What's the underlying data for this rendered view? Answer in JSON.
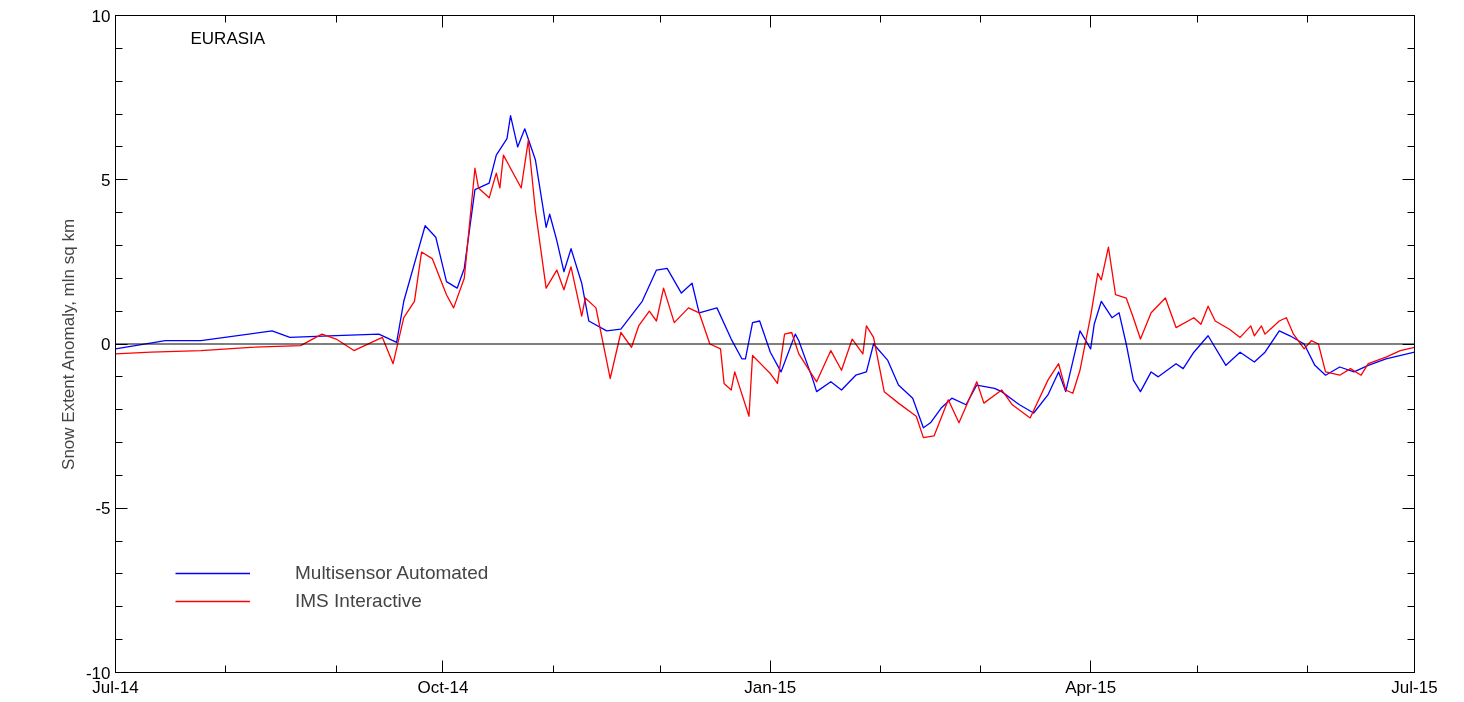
{
  "chart_data": {
    "type": "line",
    "title": "EURASIA",
    "ylabel": "Snow Extent Anomaly, mln sq km",
    "xlim": [
      "2014-07-01",
      "2015-07-01"
    ],
    "xticks": [
      {
        "value": "2014-07-01",
        "label": "Jul-14"
      },
      {
        "value": "2014-10-01",
        "label": "Oct-14"
      },
      {
        "value": "2015-01-01",
        "label": "Jan-15"
      },
      {
        "value": "2015-04-01",
        "label": "Apr-15"
      },
      {
        "value": "2015-07-01",
        "label": "Jul-15"
      }
    ],
    "ylim": [
      -10,
      10
    ],
    "yticks": [
      -10,
      -5,
      0,
      5,
      10
    ],
    "ref_lines": [
      {
        "axis": "y",
        "value": 0,
        "color": "#000000"
      }
    ],
    "legend": "bottom left",
    "grid": false,
    "line_style": "solid",
    "series": [
      {
        "name": "Multisensor Automated",
        "color": "#0000ff",
        "x": [
          "2014-07-01",
          "2014-07-15",
          "2014-07-25",
          "2014-08-14",
          "2014-08-19",
          "2014-08-30",
          "2014-09-13",
          "2014-09-18",
          "2014-09-20",
          "2014-09-26",
          "2014-09-29",
          "2014-10-02",
          "2014-10-05",
          "2014-10-07",
          "2014-10-10",
          "2014-10-14",
          "2014-10-16",
          "2014-10-19",
          "2014-10-20",
          "2014-10-22",
          "2014-10-24",
          "2014-10-27",
          "2014-10-30",
          "2014-10-31",
          "2014-11-02",
          "2014-11-04",
          "2014-11-06",
          "2014-11-09",
          "2014-11-11",
          "2014-11-16",
          "2014-11-20",
          "2014-11-26",
          "2014-11-30",
          "2014-12-03",
          "2014-12-07",
          "2014-12-10",
          "2014-12-12",
          "2014-12-17",
          "2014-12-21",
          "2014-12-24",
          "2014-12-25",
          "2014-12-27",
          "2014-12-29",
          "2015-01-01",
          "2015-01-04",
          "2015-01-08",
          "2015-01-09",
          "2015-01-13",
          "2015-01-14",
          "2015-01-18",
          "2015-01-21",
          "2015-01-25",
          "2015-01-28",
          "2015-01-30",
          "2015-02-03",
          "2015-02-06",
          "2015-02-10",
          "2015-02-13",
          "2015-02-15",
          "2015-02-18",
          "2015-02-21",
          "2015-02-25",
          "2015-02-28",
          "2015-03-05",
          "2015-03-07",
          "2015-03-12",
          "2015-03-16",
          "2015-03-20",
          "2015-03-23",
          "2015-03-25",
          "2015-03-29",
          "2015-04-01",
          "2015-04-02",
          "2015-04-04",
          "2015-04-07",
          "2015-04-09",
          "2015-04-11",
          "2015-04-13",
          "2015-04-15",
          "2015-04-18",
          "2015-04-20",
          "2015-04-25",
          "2015-04-27",
          "2015-04-30",
          "2015-05-04",
          "2015-05-09",
          "2015-05-13",
          "2015-05-17",
          "2015-05-20",
          "2015-05-24",
          "2015-05-27",
          "2015-05-31",
          "2015-06-03",
          "2015-06-06",
          "2015-06-10",
          "2015-06-14",
          "2015-06-18",
          "2015-06-23",
          "2015-07-01"
        ],
        "values": [
          -0.15,
          0.1,
          0.1,
          0.4,
          0.2,
          0.25,
          0.3,
          0.05,
          1.3,
          3.6,
          3.25,
          1.9,
          1.7,
          2.3,
          4.7,
          4.9,
          5.75,
          6.25,
          6.95,
          6.0,
          6.55,
          5.6,
          3.55,
          3.95,
          3.15,
          2.2,
          2.9,
          1.85,
          0.7,
          0.4,
          0.45,
          1.3,
          2.25,
          2.3,
          1.55,
          1.85,
          0.95,
          1.1,
          0.15,
          -0.45,
          -0.45,
          0.65,
          0.7,
          -0.25,
          -0.85,
          0.3,
          0.1,
          -1.1,
          -1.45,
          -1.15,
          -1.4,
          -0.95,
          -0.85,
          0.0,
          -0.5,
          -1.25,
          -1.65,
          -2.55,
          -2.4,
          -1.95,
          -1.65,
          -1.85,
          -1.25,
          -1.35,
          -1.45,
          -1.85,
          -2.1,
          -1.55,
          -0.85,
          -1.45,
          0.4,
          -0.15,
          0.6,
          1.3,
          0.8,
          0.95,
          0.0,
          -1.1,
          -1.45,
          -0.85,
          -1.0,
          -0.6,
          -0.75,
          -0.25,
          0.25,
          -0.65,
          -0.25,
          -0.55,
          -0.25,
          0.4,
          0.25,
          0.0,
          -0.65,
          -0.95,
          -0.7,
          -0.85,
          -0.65,
          -0.45,
          -0.25
        ]
      },
      {
        "name": "IMS Interactive",
        "color": "#ff0000",
        "x": [
          "2014-07-01",
          "2014-07-11",
          "2014-07-25",
          "2014-08-08",
          "2014-08-22",
          "2014-08-28",
          "2014-09-01",
          "2014-09-06",
          "2014-09-12",
          "2014-09-14",
          "2014-09-17",
          "2014-09-20",
          "2014-09-23",
          "2014-09-25",
          "2014-09-28",
          "2014-10-02",
          "2014-10-04",
          "2014-10-07",
          "2014-10-10",
          "2014-10-11",
          "2014-10-14",
          "2014-10-16",
          "2014-10-17",
          "2014-10-18",
          "2014-10-23",
          "2014-10-25",
          "2014-10-27",
          "2014-10-30",
          "2014-11-02",
          "2014-11-04",
          "2014-11-06",
          "2014-11-09",
          "2014-11-10",
          "2014-11-13",
          "2014-11-17",
          "2014-11-20",
          "2014-11-23",
          "2014-11-25",
          "2014-11-28",
          "2014-11-30",
          "2014-12-02",
          "2014-12-05",
          "2014-12-09",
          "2014-12-12",
          "2014-12-15",
          "2014-12-18",
          "2014-12-19",
          "2014-12-21",
          "2014-12-22",
          "2014-12-26",
          "2014-12-27",
          "2015-01-01",
          "2015-01-03",
          "2015-01-05",
          "2015-01-07",
          "2015-01-09",
          "2015-01-14",
          "2015-01-18",
          "2015-01-21",
          "2015-01-24",
          "2015-01-27",
          "2015-01-28",
          "2015-01-30",
          "2015-02-02",
          "2015-02-06",
          "2015-02-11",
          "2015-02-13",
          "2015-02-16",
          "2015-02-20",
          "2015-02-23",
          "2015-02-28",
          "2015-03-02",
          "2015-03-07",
          "2015-03-10",
          "2015-03-15",
          "2015-03-20",
          "2015-03-23",
          "2015-03-25",
          "2015-03-27",
          "2015-03-29",
          "2015-04-01",
          "2015-04-03",
          "2015-04-04",
          "2015-04-06",
          "2015-04-08",
          "2015-04-11",
          "2015-04-13",
          "2015-04-15",
          "2015-04-18",
          "2015-04-22",
          "2015-04-25",
          "2015-04-30",
          "2015-05-02",
          "2015-05-04",
          "2015-05-06",
          "2015-05-10",
          "2015-05-13",
          "2015-05-16",
          "2015-05-17",
          "2015-05-19",
          "2015-05-20",
          "2015-05-24",
          "2015-05-26",
          "2015-05-28",
          "2015-05-31",
          "2015-06-02",
          "2015-06-04",
          "2015-06-06",
          "2015-06-10",
          "2015-06-13",
          "2015-06-16",
          "2015-06-18",
          "2015-06-23",
          "2015-06-27",
          "2015-07-01"
        ],
        "values": [
          -0.3,
          -0.25,
          -0.2,
          -0.1,
          -0.05,
          0.3,
          0.15,
          -0.2,
          0.1,
          0.2,
          -0.6,
          0.8,
          1.3,
          2.8,
          2.6,
          1.5,
          1.1,
          2.0,
          5.35,
          4.75,
          4.45,
          5.2,
          4.75,
          5.75,
          4.75,
          6.2,
          4.05,
          1.7,
          2.25,
          1.65,
          2.35,
          0.85,
          1.4,
          1.1,
          -1.05,
          0.35,
          -0.1,
          0.55,
          1.0,
          0.7,
          1.7,
          0.65,
          1.1,
          0.95,
          0.0,
          -0.15,
          -1.2,
          -1.4,
          -0.85,
          -2.2,
          -0.35,
          -0.9,
          -1.2,
          0.3,
          0.35,
          -0.3,
          -1.15,
          -0.2,
          -0.8,
          0.15,
          -0.3,
          0.55,
          0.2,
          -1.45,
          -1.8,
          -2.2,
          -2.85,
          -2.8,
          -1.7,
          -2.4,
          -1.15,
          -1.8,
          -1.4,
          -1.85,
          -2.25,
          -1.1,
          -0.6,
          -1.4,
          -1.5,
          -0.8,
          0.85,
          2.15,
          1.95,
          2.95,
          1.5,
          1.4,
          0.8,
          0.15,
          0.95,
          1.4,
          0.5,
          0.8,
          0.6,
          1.15,
          0.7,
          0.45,
          0.2,
          0.55,
          0.25,
          0.55,
          0.3,
          0.7,
          0.8,
          0.3,
          -0.15,
          0.1,
          0.0,
          -0.85,
          -0.95,
          -0.75,
          -0.95,
          -0.6,
          -0.4,
          -0.2,
          -0.1
        ]
      }
    ]
  }
}
